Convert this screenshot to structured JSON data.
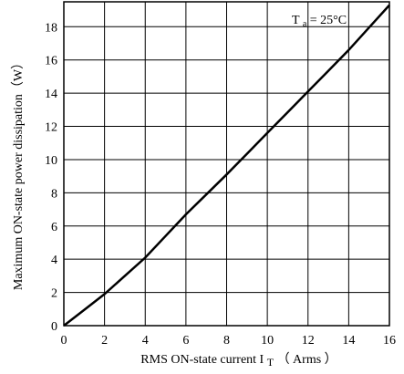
{
  "chart_data": {
    "type": "line",
    "xlabel": "RMS ON-state current I",
    "xlabel_sub": "T",
    "xlabel_unit": "（ Arms ）",
    "ylabel": "Maximum ON-state power dissipation（W）",
    "xlim": [
      0,
      16
    ],
    "ylim": [
      0,
      19.5
    ],
    "x_ticks": [
      0,
      2,
      4,
      6,
      8,
      10,
      12,
      14,
      16
    ],
    "y_ticks": [
      0,
      2,
      4,
      6,
      8,
      10,
      12,
      14,
      16,
      18
    ],
    "x_tick_labels": [
      "0",
      "2",
      "4",
      "6",
      "8",
      "10",
      "12",
      "14",
      "16"
    ],
    "y_tick_labels": [
      "0",
      "2",
      "4",
      "6",
      "8",
      "10",
      "12",
      "14",
      "16",
      "18"
    ],
    "grid": true,
    "annotation": {
      "main": "T",
      "sub": "a",
      "rest": "= 25°C"
    },
    "series": [
      {
        "x": [
          0,
          1,
          2,
          3,
          4,
          5,
          6,
          7,
          8,
          9,
          10,
          11,
          12,
          13,
          14,
          15,
          16
        ],
        "y": [
          0,
          0.95,
          1.9,
          3.0,
          4.1,
          5.4,
          6.7,
          7.9,
          9.1,
          10.35,
          11.6,
          12.85,
          14.1,
          15.35,
          16.6,
          17.95,
          19.3
        ]
      }
    ]
  }
}
